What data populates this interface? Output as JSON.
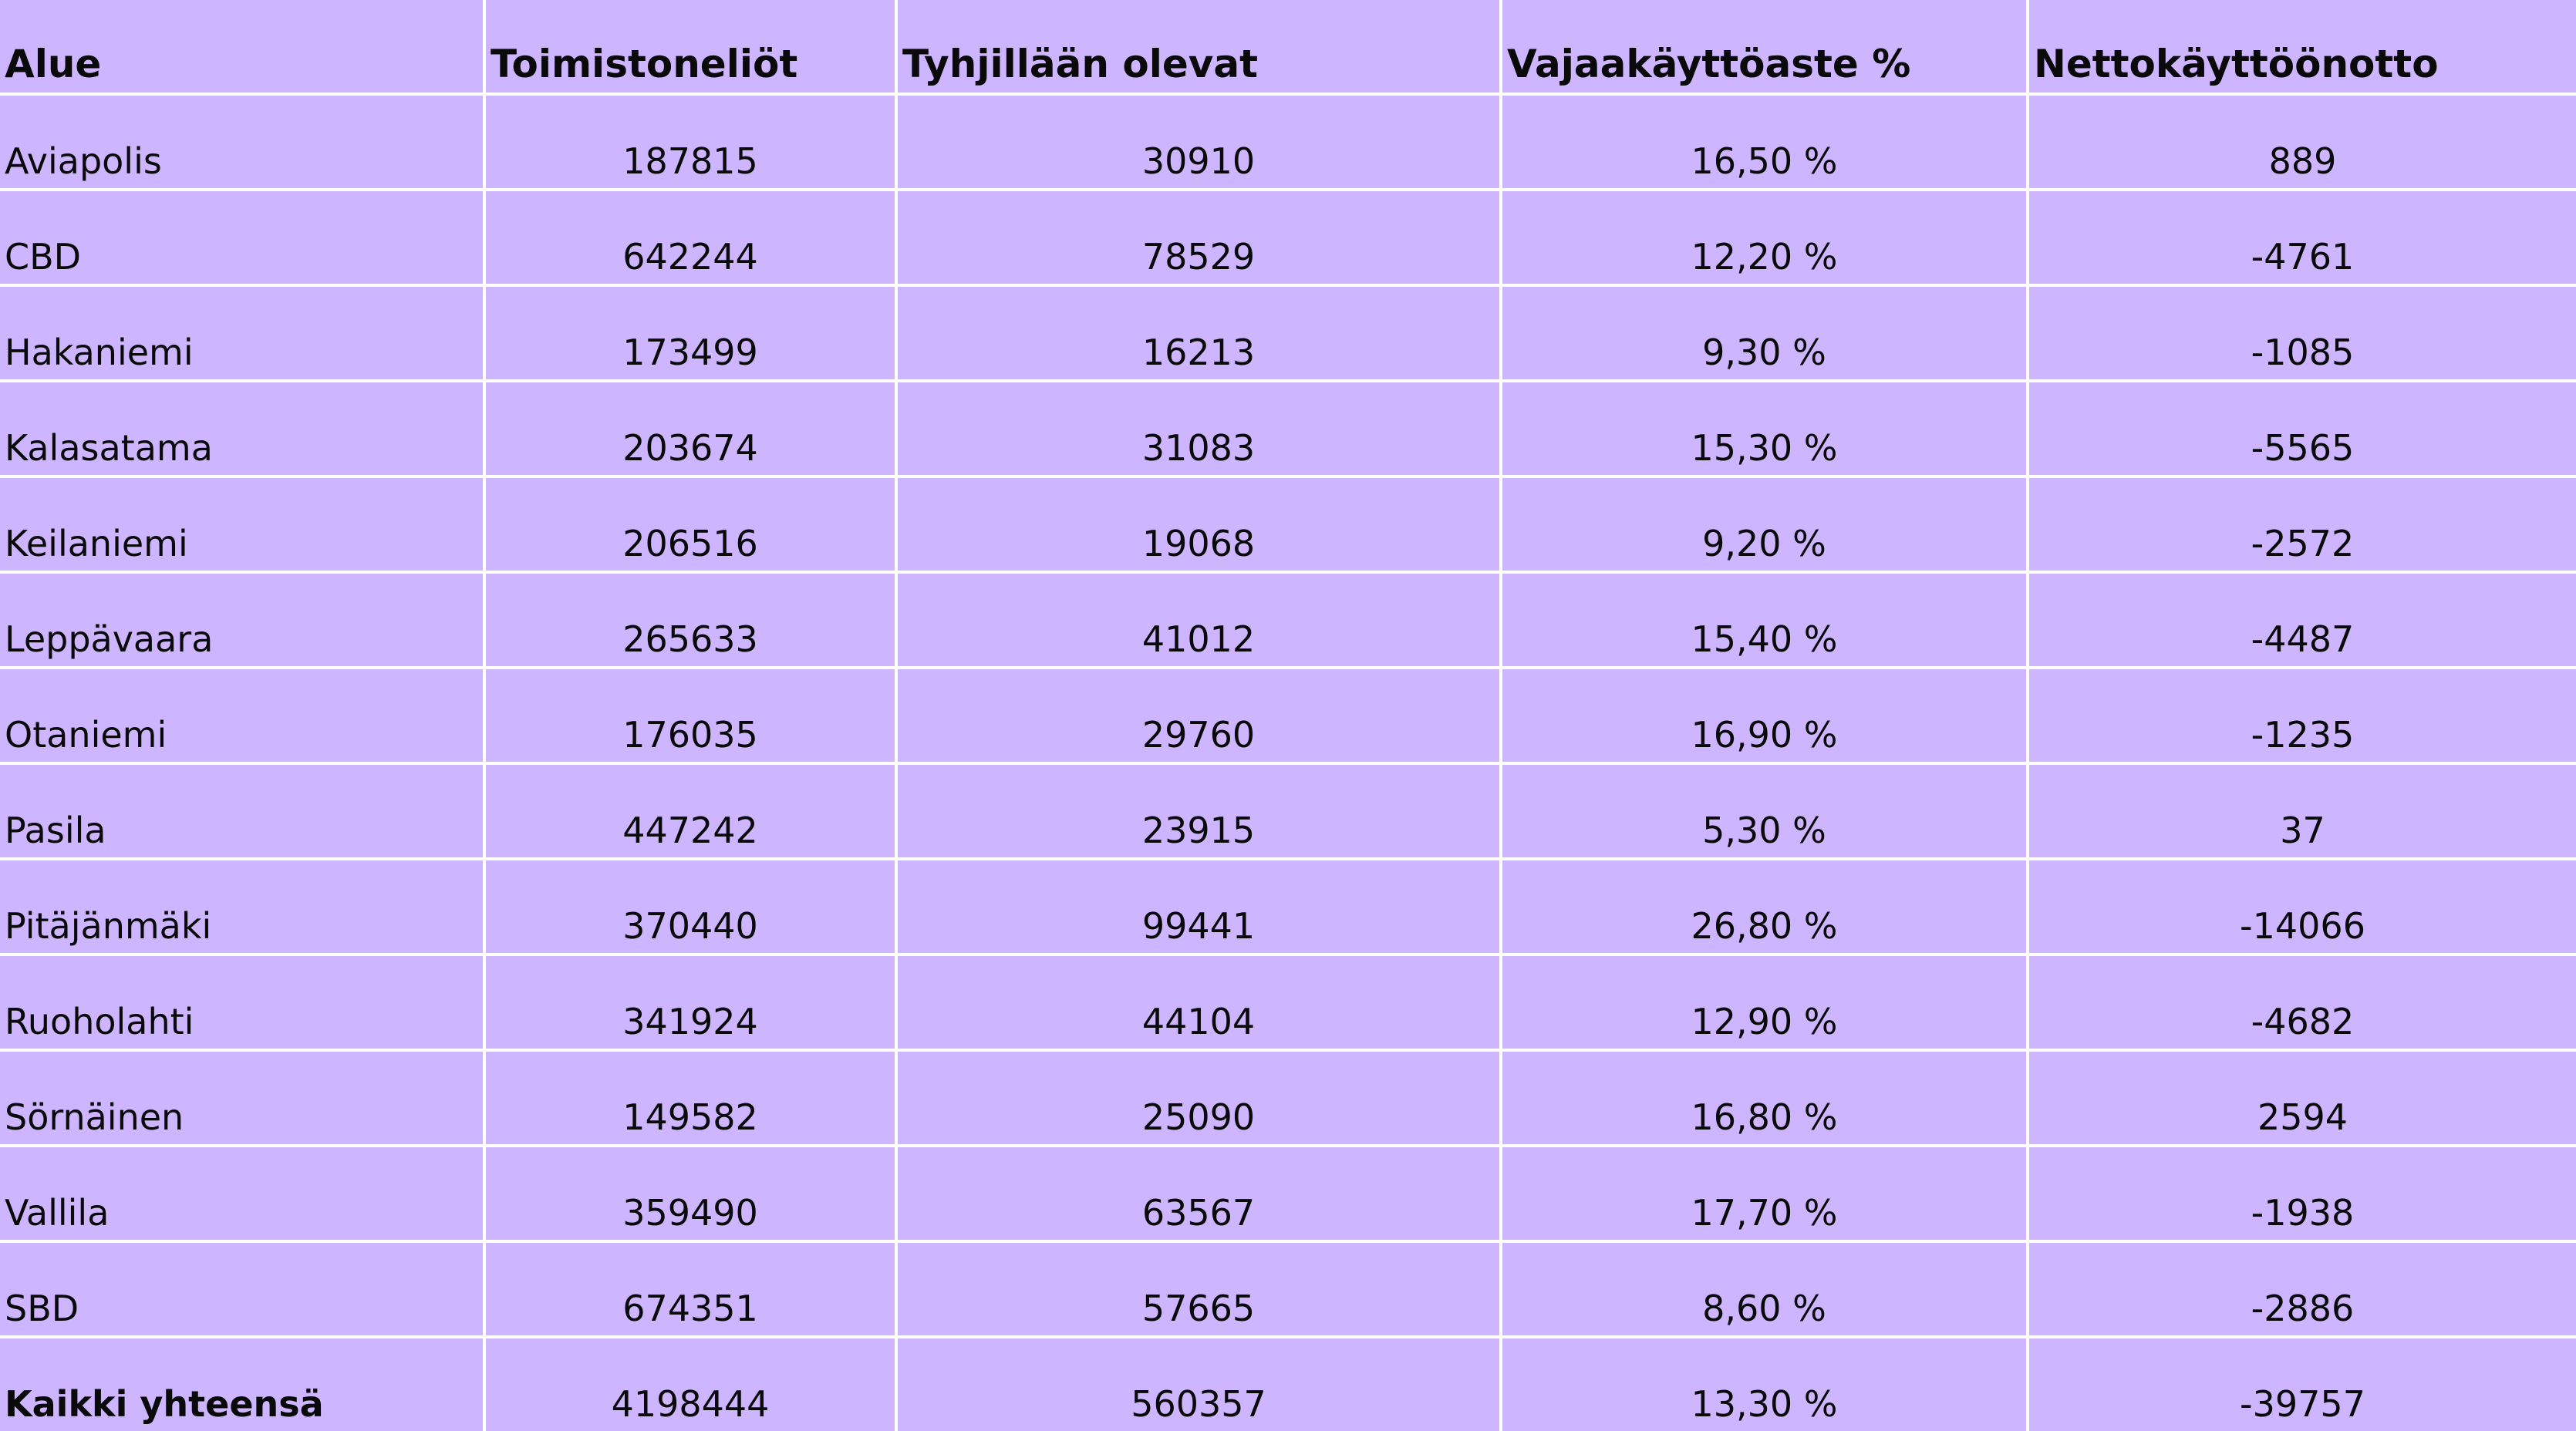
{
  "table": {
    "headers": [
      "Alue",
      "Toimistoneliöt",
      "Tyhjillään olevat",
      "Vajaakäyttöaste %",
      "Nettokäyttöönotto"
    ],
    "rows": [
      [
        "Aviapolis",
        "187815",
        "30910",
        "16,50 %",
        "889"
      ],
      [
        "CBD",
        "642244",
        "78529",
        "12,20 %",
        "-4761"
      ],
      [
        "Hakaniemi",
        "173499",
        "16213",
        "9,30 %",
        "-1085"
      ],
      [
        "Kalasatama",
        "203674",
        "31083",
        "15,30 %",
        "-5565"
      ],
      [
        "Keilaniemi",
        "206516",
        "19068",
        "9,20 %",
        "-2572"
      ],
      [
        "Leppävaara",
        "265633",
        "41012",
        "15,40 %",
        "-4487"
      ],
      [
        "Otaniemi",
        "176035",
        "29760",
        "16,90 %",
        "-1235"
      ],
      [
        "Pasila",
        "447242",
        "23915",
        "5,30 %",
        "37"
      ],
      [
        "Pitäjänmäki",
        "370440",
        "99441",
        "26,80 %",
        "-14066"
      ],
      [
        "Ruoholahti",
        "341924",
        "44104",
        "12,90 %",
        "-4682"
      ],
      [
        "Sörnäinen",
        "149582",
        "25090",
        "16,80 %",
        "2594"
      ],
      [
        "Vallila",
        "359490",
        "63567",
        "17,70 %",
        "-1938"
      ],
      [
        "SBD",
        "674351",
        "57665",
        "8,60 %",
        "-2886"
      ]
    ],
    "total": [
      "Kaikki yhteensä",
      "4198444",
      "560357",
      "13,30 %",
      "-39757"
    ]
  },
  "colors": {
    "cell_background": "#cdb6ff",
    "grid_lines": "#ffffff",
    "text": "#0a0a0a"
  }
}
